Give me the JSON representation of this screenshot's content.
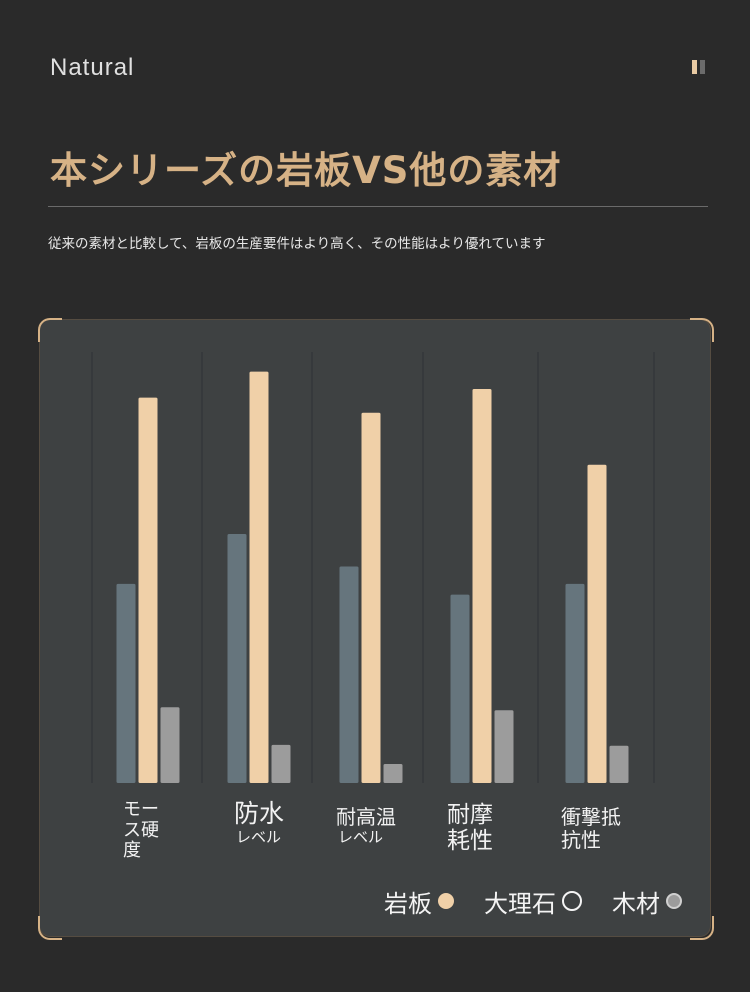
{
  "header": {
    "brand": "Natural",
    "pause_icon": "pause-icon"
  },
  "headline": "本シリーズの岩板VS他の素材",
  "subtitle": "従来の素材と比較して、岩板の生産要件はより高く、その性能はより優れています",
  "chart_data": {
    "type": "bar",
    "categories": [
      {
        "line1": "モー",
        "line2": "ス硬",
        "line3": "度"
      },
      {
        "line1": "防水",
        "line2": "レベル"
      },
      {
        "line1": "耐高温",
        "line2": "レベル"
      },
      {
        "line1": "耐摩",
        "line2": "耗性"
      },
      {
        "line1": "衝撃抵",
        "line2": "抗性"
      }
    ],
    "series": [
      {
        "name": "大理石",
        "color": "#66757d",
        "values": [
          46,
          57.5,
          50,
          43.5,
          46
        ]
      },
      {
        "name": "岩板",
        "color": "#f0d0a8",
        "values": [
          89,
          95,
          85.5,
          91,
          73.5
        ]
      },
      {
        "name": "木材",
        "color": "#9c9c9c",
        "values": [
          17.5,
          8.8,
          4.4,
          16.8,
          8.6
        ]
      }
    ],
    "ylim": [
      0,
      100
    ],
    "grid": "vertical",
    "legend_position": "bottom-right"
  },
  "legend": [
    {
      "label": "岩板",
      "dot": "filled-peach"
    },
    {
      "label": "大理石",
      "dot": "hollow-white"
    },
    {
      "label": "木材",
      "dot": "filled-gray"
    }
  ]
}
